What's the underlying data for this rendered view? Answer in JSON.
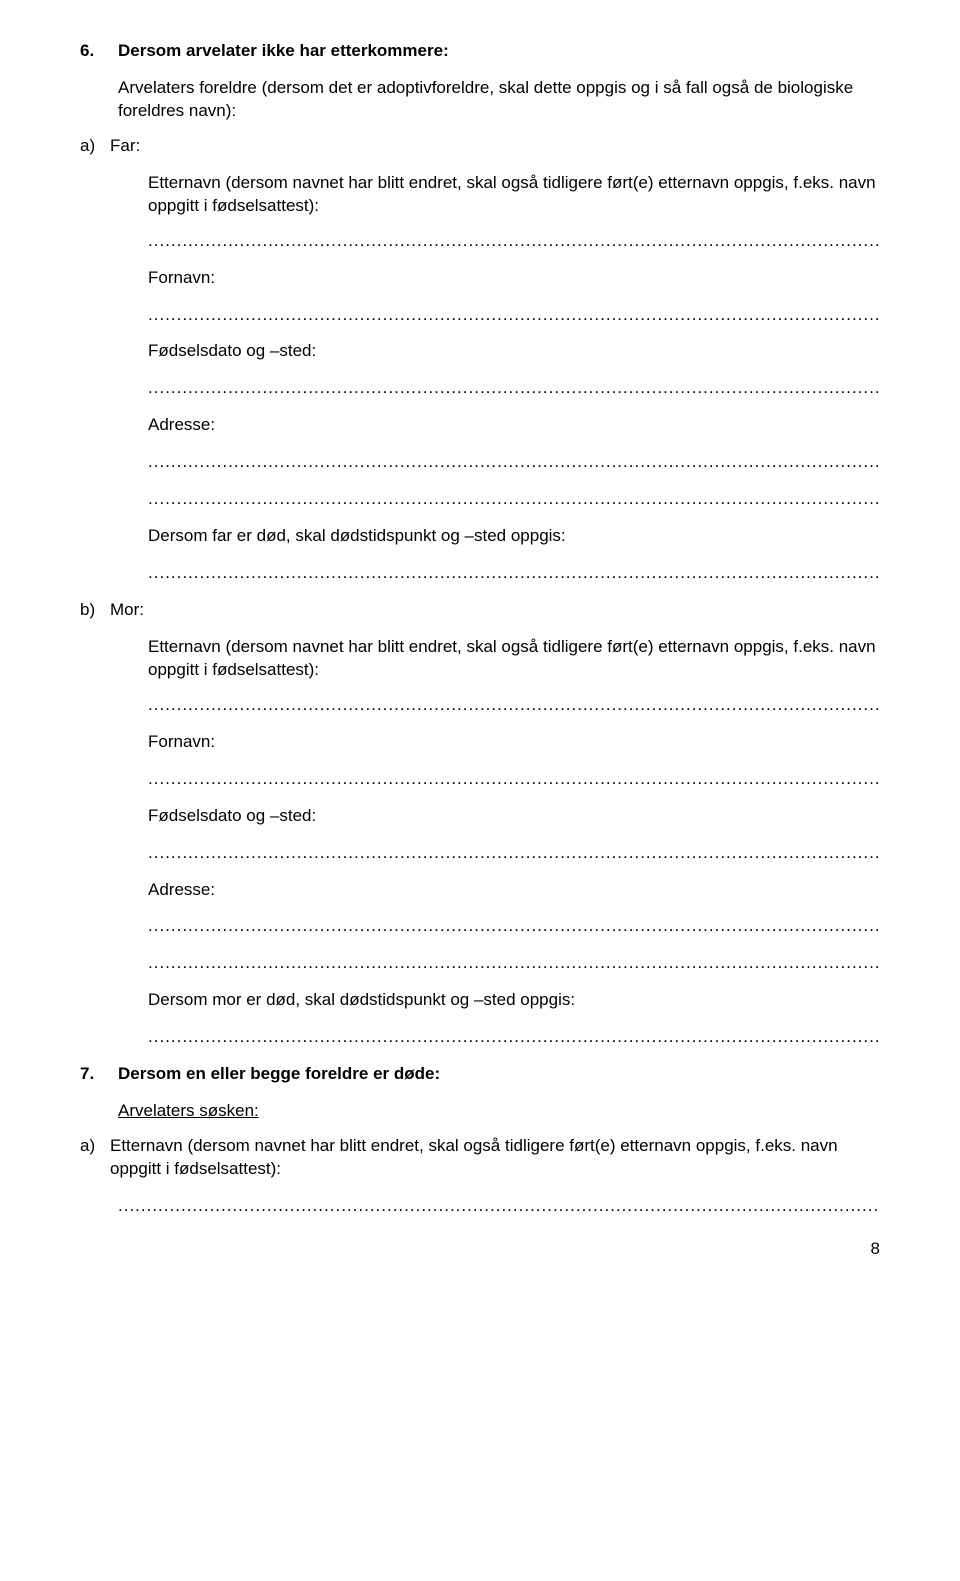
{
  "section6": {
    "number": "6.",
    "heading": "Dersom arvelater ikke har etterkommere:",
    "intro": "Arvelaters foreldre (dersom det er adoptivforeldre, skal dette oppgis og i så fall også de biologiske foreldres navn):",
    "a": {
      "letter": "a)",
      "title": "Far:",
      "surname_label": "Etternavn (dersom navnet har blitt endret, skal også tidligere ført(e) etternavn oppgis, f.eks. navn oppgitt i fødselsattest):",
      "fornavn": "Fornavn:",
      "fodselsdato": "Fødselsdato og –sted:",
      "adresse": "Adresse:",
      "dod": "Dersom far er død, skal dødstidspunkt og –sted oppgis:"
    },
    "b": {
      "letter": "b)",
      "title": "Mor:",
      "surname_label": "Etternavn (dersom navnet har blitt endret, skal også tidligere ført(e) etternavn oppgis, f.eks. navn oppgitt i fødselsattest):",
      "fornavn": "Fornavn:",
      "fodselsdato": "Fødselsdato og –sted:",
      "adresse": "Adresse:",
      "dod": "Dersom mor er død, skal dødstidspunkt og –sted oppgis:"
    }
  },
  "section7": {
    "number": "7.",
    "heading": "Dersom en eller begge foreldre er døde:",
    "subhead": "Arvelaters søsken:",
    "a": {
      "letter": "a)",
      "text": "Etternavn (dersom navnet har blitt endret, skal også tidligere ført(e) etternavn oppgis, f.eks. navn oppgitt i fødselsattest):"
    }
  },
  "dots": ".....................................................................................................................................",
  "page": "8"
}
